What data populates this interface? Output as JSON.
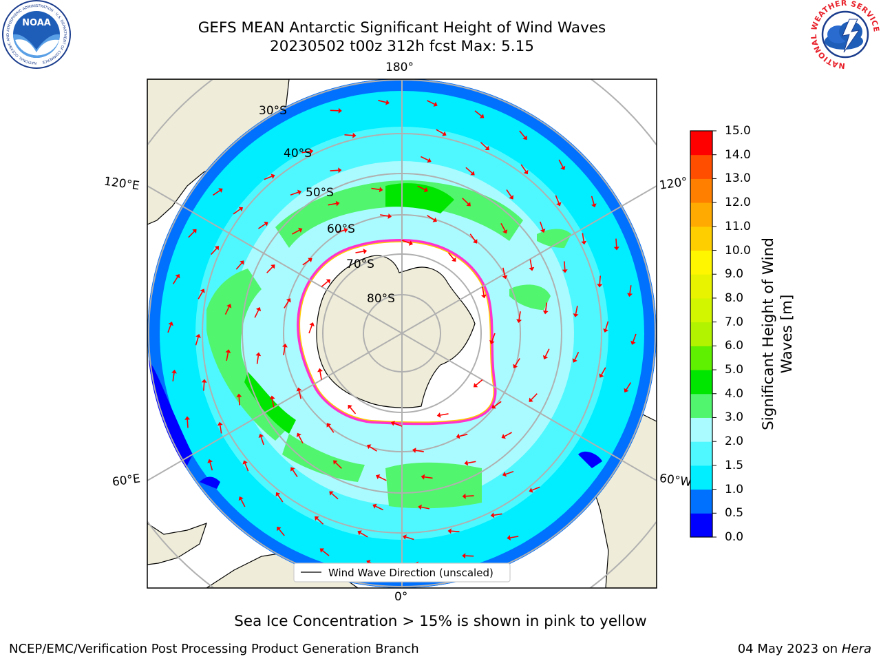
{
  "title": {
    "line1": "GEFS MEAN Antarctic Significant Height of Wind Waves",
    "line2": "20230502 t00z 312h fcst   Max: 5.15"
  },
  "logos": {
    "left": {
      "text": "NOAA",
      "ring_text": "NATIONAL OCEANIC AND ATMOSPHERIC ADMINISTRATION · U.S. DEPARTMENT OF COMMERCE",
      "icon": "noaa-logo-icon"
    },
    "right": {
      "ring_text": "NATIONAL WEATHER SERVICE",
      "icon": "nws-logo-icon"
    }
  },
  "map": {
    "longitude_labels": {
      "top": "180°",
      "bottom": "0°",
      "upper_left": "120°E",
      "lower_left": "60°E",
      "upper_right": "120°",
      "lower_right": "60°W"
    },
    "latitude_labels": [
      "30°S",
      "40°S",
      "50°S",
      "60°S",
      "70°S",
      "80°S"
    ],
    "legend": "Wind Wave Direction (unscaled)",
    "colors": {
      "land": "#efecd9",
      "ice": "#ffffff",
      "arrow": "#ff0000",
      "gridline": "#b0b0b0"
    }
  },
  "colorbar": {
    "title_line1": "Significant Height of Wind",
    "title_line2": "Waves [m]",
    "ticks": [
      "0.0",
      "0.5",
      "1.0",
      "1.5",
      "2.0",
      "3.0",
      "4.0",
      "5.0",
      "6.0",
      "7.0",
      "8.0",
      "9.0",
      "10.0",
      "11.0",
      "12.0",
      "13.0",
      "14.0",
      "15.0"
    ],
    "colors": [
      "#0000ff",
      "#0070ff",
      "#00eeff",
      "#4ff8ff",
      "#aafbff",
      "#52f56e",
      "#00e600",
      "#5ef000",
      "#b2f300",
      "#d2f500",
      "#e8f300",
      "#fff600",
      "#ffce00",
      "#ffaa00",
      "#ff8000",
      "#ff4e00",
      "#ff0000"
    ]
  },
  "bottom_note": "Sea Ice Concentration > 15% is shown in pink to yellow",
  "footer": {
    "left": "NCEP/EMC/Verification Post Processing Product Generation Branch",
    "date": "04 May 2023 on",
    "machine": "Hera"
  }
}
